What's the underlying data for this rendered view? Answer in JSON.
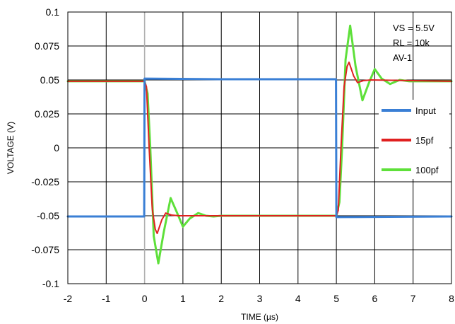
{
  "chart_data": {
    "type": "line",
    "xlabel": "TIME (µs)",
    "ylabel": "VOLTAGE (V)",
    "xlim": [
      -2,
      8
    ],
    "ylim": [
      -0.1,
      0.1
    ],
    "x_ticks": [
      -2,
      -1,
      0,
      1,
      2,
      3,
      4,
      5,
      6,
      7,
      8
    ],
    "x_tick_labels": [
      "-2",
      "-1",
      "0",
      "1",
      "2",
      "3",
      "4",
      "5",
      "6",
      "7",
      "8"
    ],
    "y_ticks": [
      0.1,
      0.075,
      0.05,
      0.025,
      0,
      -0.025,
      -0.05,
      -0.075,
      -0.1
    ],
    "y_tick_labels": [
      "0.1",
      "0.075",
      "0.05",
      "0.025",
      "0",
      "-0.025",
      "-0.05",
      "-0.075",
      "-0.1"
    ],
    "grid": true,
    "legend_position": "right",
    "annotations": [
      "VS = 5.5V",
      "RL = 10k",
      "AV-1"
    ],
    "series": [
      {
        "name": "Input",
        "color": "#3a7fd5",
        "points": [
          [
            -2,
            -0.0505
          ],
          [
            -0.01,
            -0.0505
          ],
          [
            0.0,
            0.051
          ],
          [
            2.0,
            0.0505
          ],
          [
            4.99,
            0.0505
          ],
          [
            5.0,
            -0.051
          ],
          [
            8,
            -0.0505
          ]
        ]
      },
      {
        "name": "15pf",
        "color": "#e02020",
        "points": [
          [
            -2,
            0.049
          ],
          [
            0.0,
            0.049
          ],
          [
            0.05,
            0.045
          ],
          [
            0.12,
            0.0
          ],
          [
            0.2,
            -0.045
          ],
          [
            0.28,
            -0.06
          ],
          [
            0.33,
            -0.063
          ],
          [
            0.45,
            -0.053
          ],
          [
            0.55,
            -0.048
          ],
          [
            0.7,
            -0.0495
          ],
          [
            0.9,
            -0.05
          ],
          [
            1.5,
            -0.05
          ],
          [
            5.0,
            -0.05
          ],
          [
            5.05,
            -0.046
          ],
          [
            5.12,
            0.0
          ],
          [
            5.2,
            0.045
          ],
          [
            5.28,
            0.06
          ],
          [
            5.33,
            0.063
          ],
          [
            5.45,
            0.053
          ],
          [
            5.55,
            0.048
          ],
          [
            5.7,
            0.0495
          ],
          [
            5.9,
            0.05
          ],
          [
            8,
            0.049
          ]
        ]
      },
      {
        "name": "100pf",
        "color": "#5ee03a",
        "points": [
          [
            -2,
            0.049
          ],
          [
            0.0,
            0.049
          ],
          [
            0.08,
            0.04
          ],
          [
            0.15,
            0.0
          ],
          [
            0.24,
            -0.065
          ],
          [
            0.36,
            -0.085
          ],
          [
            0.5,
            -0.062
          ],
          [
            0.68,
            -0.037
          ],
          [
            0.85,
            -0.048
          ],
          [
            1.0,
            -0.058
          ],
          [
            1.18,
            -0.052
          ],
          [
            1.4,
            -0.048
          ],
          [
            1.6,
            -0.05
          ],
          [
            1.8,
            -0.0505
          ],
          [
            2.0,
            -0.05
          ],
          [
            5.0,
            -0.05
          ],
          [
            5.08,
            -0.04
          ],
          [
            5.15,
            0.0
          ],
          [
            5.24,
            0.065
          ],
          [
            5.36,
            0.09
          ],
          [
            5.5,
            0.06
          ],
          [
            5.68,
            0.035
          ],
          [
            5.85,
            0.048
          ],
          [
            6.0,
            0.058
          ],
          [
            6.18,
            0.051
          ],
          [
            6.4,
            0.047
          ],
          [
            6.65,
            0.05
          ],
          [
            6.9,
            0.049
          ],
          [
            8,
            0.049
          ]
        ]
      }
    ]
  }
}
